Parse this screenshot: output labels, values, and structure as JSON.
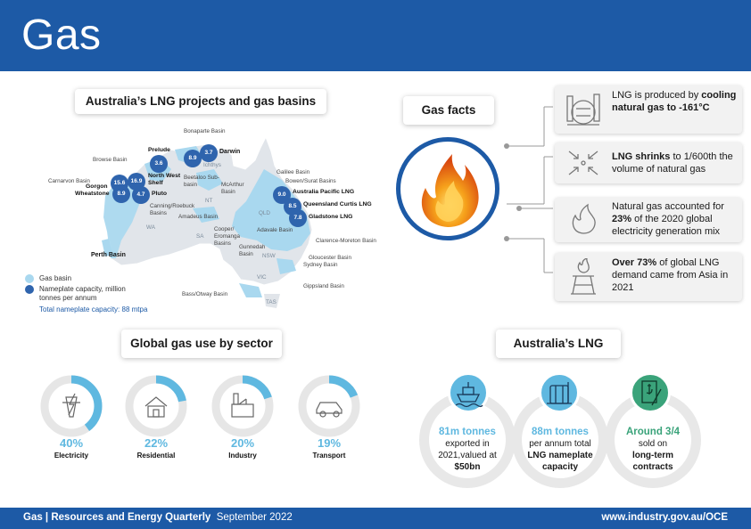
{
  "header": {
    "title": "Gas"
  },
  "map": {
    "title": "Australia’s LNG projects and gas basins",
    "basins": [
      "Bonaparte Basin",
      "Browse Basin",
      "Carnarvon Basin",
      "Canning/Roebuck Basins",
      "Beetaloo Sub-basin",
      "McArthur Basin",
      "Amadeus Basin",
      "Galilee Basin",
      "Bowen/Surat Basins",
      "Cooper/ Eromanga Basins",
      "Adavale Basin",
      "Gunnedah Basin",
      "Clarence-Moreton Basin",
      "Gloucester Basin",
      "Sydney Basin",
      "Gippsland Basin",
      "Bass/Otway Basin",
      "Perth Basin"
    ],
    "projects": [
      {
        "name": "Prelude",
        "capacity": "3.6"
      },
      {
        "name": "Darwin",
        "capacity": "3.7"
      },
      {
        "name": "Ichthys",
        "capacity": "8.9"
      },
      {
        "name": "North West Shelf",
        "capacity": "16.9"
      },
      {
        "name": "Gorgon",
        "capacity": "15.6"
      },
      {
        "name": "Wheatstone",
        "capacity": "8.9"
      },
      {
        "name": "Pluto",
        "capacity": "4.7"
      },
      {
        "name": "Australia Pacific LNG",
        "capacity": "9.0"
      },
      {
        "name": "Queensland Curtis LNG",
        "capacity": "8.5"
      },
      {
        "name": "Gladstone LNG",
        "capacity": "7.8"
      }
    ],
    "states": [
      "WA",
      "NT",
      "SA",
      "QLD",
      "NSW",
      "VIC",
      "TAS"
    ],
    "legend": {
      "basin": "Gas basin",
      "capacity": "Nameplate capacity, million tonnes per annum",
      "total": "Total nameplate capacity: 88 mtpa",
      "basin_color": "#a9d8ef",
      "capacity_color": "#2f64ad"
    }
  },
  "facts": {
    "title": "Gas facts",
    "items": [
      {
        "pre": "LNG is produced by ",
        "bold": "cooling natural gas to -161°C",
        "post": "",
        "icon": "gas-plant-icon"
      },
      {
        "pre": "",
        "bold": "LNG shrinks",
        "post": " to 1/600th the volume of natural gas",
        "icon": "shrink-arrows-icon"
      },
      {
        "pre": "Natural gas accounted for ",
        "bold": "23%",
        "post": " of the 2020 global electricity generation mix",
        "icon": "flame-icon"
      },
      {
        "pre": "",
        "bold": "Over 73%",
        "post": " of global LNG demand came from Asia in 2021",
        "icon": "gas-rig-icon"
      }
    ]
  },
  "sectors": {
    "title": "Global gas use by sector",
    "items": [
      {
        "pct": "40%",
        "label": "Electricity",
        "value": 40,
        "icon": "power-pylon-icon"
      },
      {
        "pct": "22%",
        "label": "Residential",
        "value": 22,
        "icon": "house-icon"
      },
      {
        "pct": "20%",
        "label": "Industry",
        "value": 20,
        "icon": "factory-icon"
      },
      {
        "pct": "19%",
        "label": "Transport",
        "value": 19,
        "icon": "car-icon"
      }
    ],
    "ring_color": "#5fb8e0",
    "track_color": "#e6e6e6"
  },
  "lng": {
    "title": "Australia’s LNG",
    "items": [
      {
        "highlight": "81m tonnes",
        "line2": "exported in",
        "line3": "2021,valued at",
        "line4": "$50bn",
        "icon": "ship-icon"
      },
      {
        "highlight": "88m tonnes",
        "line2": "per annum total",
        "line3": "LNG nameplate",
        "line4": "capacity",
        "icon": "storage-tank-icon"
      },
      {
        "highlight": "Around 3/4",
        "line2": "sold on",
        "line3": "long-term",
        "line4": "contracts",
        "icon": "contract-icon"
      }
    ]
  },
  "footer": {
    "left_bold": "Gas | Resources and Energy Quarterly",
    "left_date": "September 2022",
    "right": "www.industry.gov.au/OCE"
  }
}
